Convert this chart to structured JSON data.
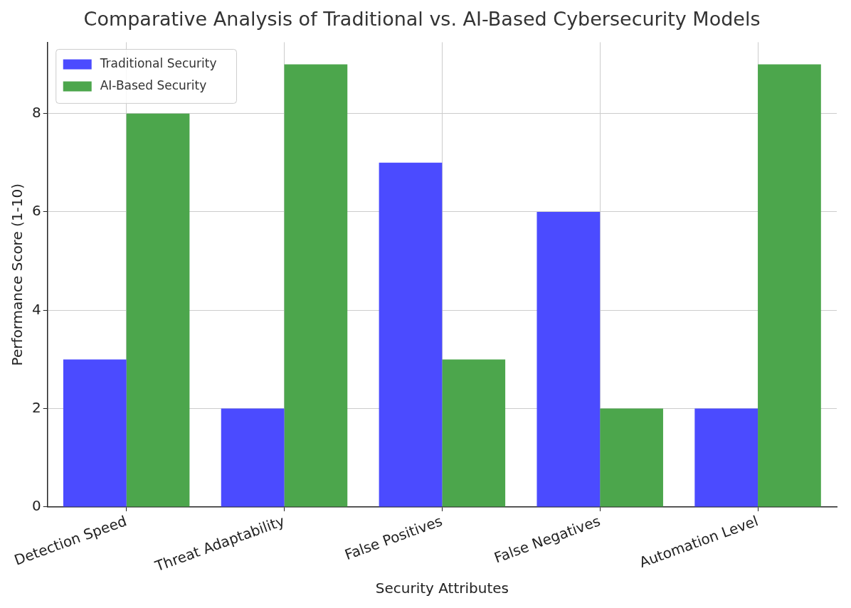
{
  "chart_data": {
    "type": "bar",
    "title": "Comparative Analysis of Traditional vs. AI-Based Cybersecurity Models",
    "xlabel": "Security Attributes",
    "ylabel": "Performance Score (1-10)",
    "categories": [
      "Detection Speed",
      "Threat Adaptability",
      "False Positives",
      "False Negatives",
      "Automation Level"
    ],
    "series": [
      {
        "name": "Traditional Security",
        "color": "#4b4bff",
        "values": [
          3,
          2,
          7,
          6,
          2
        ]
      },
      {
        "name": "AI-Based Security",
        "color": "#4ca64c",
        "values": [
          8,
          9,
          3,
          2,
          9
        ]
      }
    ],
    "ylim": [
      0,
      9.45
    ],
    "yticks": [
      0,
      2,
      4,
      6,
      8
    ],
    "grid": true,
    "legend": "top left"
  }
}
